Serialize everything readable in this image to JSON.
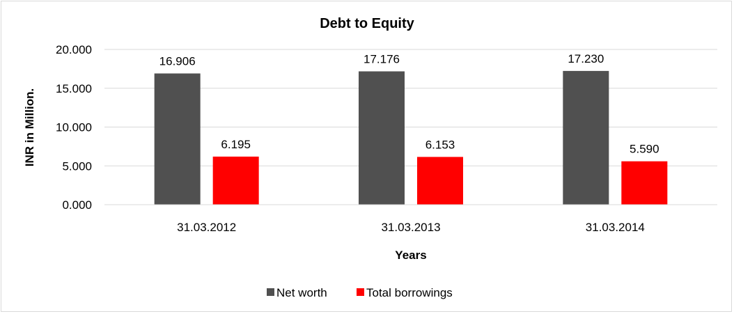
{
  "chart_data": {
    "type": "bar",
    "title": "Debt to Equity",
    "xlabel": "Years",
    "ylabel": "INR in Million.",
    "categories": [
      "31.03.2012",
      "31.03.2013",
      "31.03.2014"
    ],
    "series": [
      {
        "name": "Net worth",
        "values": [
          16.906,
          17.176,
          17.23
        ],
        "labels": [
          "16.906",
          "17.176",
          "17.230"
        ],
        "color": "#505050"
      },
      {
        "name": "Total borrowings",
        "values": [
          6.195,
          6.153,
          5.59
        ],
        "labels": [
          "6.195",
          "6.153",
          "5.590"
        ],
        "color": "#ff0000"
      }
    ],
    "ylim": [
      0,
      20
    ],
    "yticks": [
      0,
      5,
      10,
      15,
      20
    ],
    "ytick_labels": [
      "0.000",
      "5.000",
      "10.000",
      "15.000",
      "20.000"
    ],
    "grid": true,
    "legend_position": "bottom"
  }
}
